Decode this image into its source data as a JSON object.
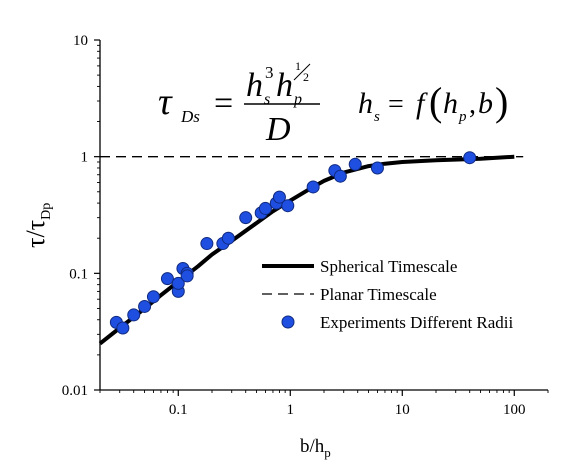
{
  "chart_data": {
    "type": "scatter",
    "xscale": "log",
    "yscale": "log",
    "xlim": [
      0.02,
      200
    ],
    "ylim": [
      0.01,
      10
    ],
    "xlabel": {
      "main": "b/h",
      "sub": "p"
    },
    "ylabel": {
      "main": "τ/τ",
      "sub": "Dp"
    },
    "x_ticks": [
      {
        "value": 0.1,
        "label": "0.1"
      },
      {
        "value": 1,
        "label": "1"
      },
      {
        "value": 10,
        "label": "10"
      },
      {
        "value": 100,
        "label": "100"
      }
    ],
    "y_ticks": [
      {
        "value": 0.01,
        "label": "0.01"
      },
      {
        "value": 0.1,
        "label": "0.1"
      },
      {
        "value": 1,
        "label": "1"
      },
      {
        "value": 10,
        "label": "10"
      }
    ],
    "equations": {
      "tau_lhs": "τ",
      "tau_sub": "Ds",
      "numerator_h1": "h",
      "numerator_h1_sub": "s",
      "numerator_h1_sup": "3",
      "numerator_h2": "h",
      "numerator_h2_sub": "p",
      "numerator_h2_sup_num": "1",
      "numerator_h2_sup_den": "2",
      "denominator": "D",
      "hs_lhs": "h",
      "hs_sub": "s",
      "hs_rhs_f": "f",
      "hs_arg_h": "h",
      "hs_arg_sub": "p",
      "hs_arg_b": "b"
    },
    "series": [
      {
        "name": "Spherical Timescale",
        "style": "thick-solid",
        "color": "#000000",
        "x": [
          0.02,
          0.03,
          0.05,
          0.07,
          0.1,
          0.15,
          0.2,
          0.3,
          0.5,
          0.7,
          1,
          1.5,
          2,
          3,
          5,
          7,
          10,
          20,
          50,
          100
        ],
        "y": [
          0.025,
          0.034,
          0.05,
          0.065,
          0.085,
          0.115,
          0.145,
          0.19,
          0.27,
          0.34,
          0.42,
          0.53,
          0.62,
          0.73,
          0.83,
          0.87,
          0.9,
          0.93,
          0.96,
          1.0
        ]
      },
      {
        "name": "Planar Timescale",
        "style": "dashed",
        "color": "#000000",
        "x": [
          0.02,
          120
        ],
        "y": [
          1,
          1
        ]
      },
      {
        "name": "Experiments Different Radii",
        "style": "markers",
        "color": "#1f4fe0",
        "x": [
          0.028,
          0.032,
          0.04,
          0.05,
          0.06,
          0.08,
          0.1,
          0.1,
          0.11,
          0.12,
          0.12,
          0.18,
          0.25,
          0.28,
          0.4,
          0.55,
          0.6,
          0.75,
          0.8,
          0.95,
          1.6,
          2.5,
          2.8,
          3.8,
          6,
          40
        ],
        "y": [
          0.038,
          0.034,
          0.044,
          0.052,
          0.063,
          0.09,
          0.07,
          0.082,
          0.11,
          0.1,
          0.095,
          0.18,
          0.18,
          0.2,
          0.3,
          0.33,
          0.36,
          0.4,
          0.45,
          0.38,
          0.55,
          0.76,
          0.68,
          0.86,
          0.8,
          0.98
        ]
      }
    ],
    "legend": {
      "position": "lower-right",
      "entries": [
        {
          "label": "Spherical Timescale",
          "marker": "thick-line"
        },
        {
          "label": "Planar Timescale",
          "marker": "dashed-line"
        },
        {
          "label": "Experiments Different Radii",
          "marker": "circle"
        }
      ]
    },
    "grid": false
  }
}
